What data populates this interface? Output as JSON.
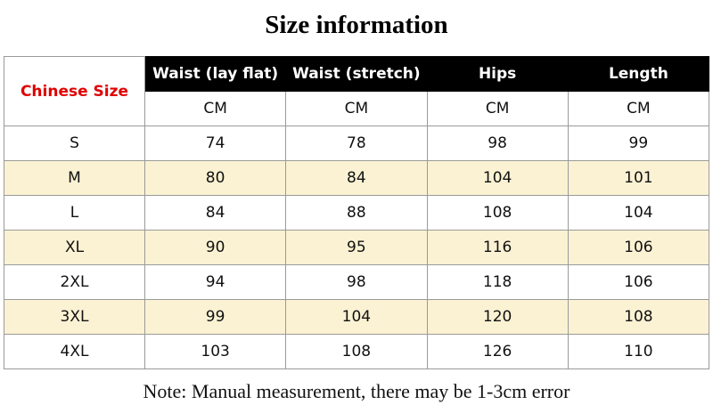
{
  "header": {
    "title": "Size information"
  },
  "table": {
    "size_header": "Chinese Size",
    "columns": [
      "Waist  (lay flat)",
      "Waist  (stretch)",
      "Hips",
      "Length"
    ],
    "units": [
      "CM",
      "CM",
      "CM",
      "CM"
    ],
    "rows": [
      [
        "S",
        74,
        78,
        98,
        99
      ],
      [
        "M",
        80,
        84,
        104,
        101
      ],
      [
        "L",
        84,
        88,
        108,
        104
      ],
      [
        "XL",
        90,
        95,
        116,
        106
      ],
      [
        "2XL",
        94,
        98,
        118,
        106
      ],
      [
        "3XL",
        99,
        104,
        120,
        108
      ],
      [
        "4XL",
        103,
        108,
        126,
        110
      ]
    ]
  },
  "note": "Note: Manual measurement, there may be 1-3cm error"
}
